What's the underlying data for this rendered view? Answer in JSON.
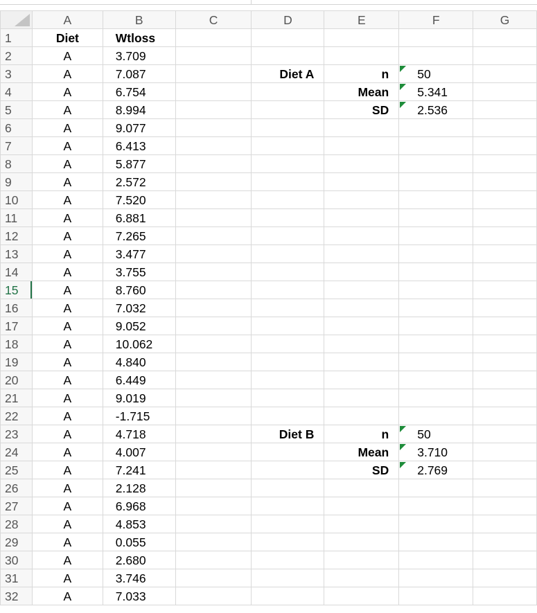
{
  "columns": [
    "A",
    "B",
    "C",
    "D",
    "E",
    "F",
    "G"
  ],
  "active_row": 15,
  "rows": [
    {
      "num": "1",
      "a": "Diet",
      "b": "Wtloss"
    },
    {
      "num": "2",
      "a": "A",
      "b": "3.709"
    },
    {
      "num": "3",
      "a": "A",
      "b": "7.087",
      "d": "Diet A",
      "e": "n",
      "f": "50"
    },
    {
      "num": "4",
      "a": "A",
      "b": "6.754",
      "e": "Mean",
      "f": "5.341"
    },
    {
      "num": "5",
      "a": "A",
      "b": "8.994",
      "e": "SD",
      "f": "2.536"
    },
    {
      "num": "6",
      "a": "A",
      "b": "9.077"
    },
    {
      "num": "7",
      "a": "A",
      "b": "6.413"
    },
    {
      "num": "8",
      "a": "A",
      "b": "5.877"
    },
    {
      "num": "9",
      "a": "A",
      "b": "2.572"
    },
    {
      "num": "10",
      "a": "A",
      "b": "7.520"
    },
    {
      "num": "11",
      "a": "A",
      "b": "6.881"
    },
    {
      "num": "12",
      "a": "A",
      "b": "7.265"
    },
    {
      "num": "13",
      "a": "A",
      "b": "3.477"
    },
    {
      "num": "14",
      "a": "A",
      "b": "3.755"
    },
    {
      "num": "15",
      "a": "A",
      "b": "8.760"
    },
    {
      "num": "16",
      "a": "A",
      "b": "7.032"
    },
    {
      "num": "17",
      "a": "A",
      "b": "9.052"
    },
    {
      "num": "18",
      "a": "A",
      "b": "10.062"
    },
    {
      "num": "19",
      "a": "A",
      "b": "4.840"
    },
    {
      "num": "20",
      "a": "A",
      "b": "6.449"
    },
    {
      "num": "21",
      "a": "A",
      "b": "9.019"
    },
    {
      "num": "22",
      "a": "A",
      "b": "-1.715"
    },
    {
      "num": "23",
      "a": "A",
      "b": "4.718",
      "d": "Diet B",
      "e": "n",
      "f": "50"
    },
    {
      "num": "24",
      "a": "A",
      "b": "4.007",
      "e": "Mean",
      "f": "3.710"
    },
    {
      "num": "25",
      "a": "A",
      "b": "7.241",
      "e": "SD",
      "f": "2.769"
    },
    {
      "num": "26",
      "a": "A",
      "b": "2.128"
    },
    {
      "num": "27",
      "a": "A",
      "b": "6.968"
    },
    {
      "num": "28",
      "a": "A",
      "b": "4.853"
    },
    {
      "num": "29",
      "a": "A",
      "b": "0.055"
    },
    {
      "num": "30",
      "a": "A",
      "b": "2.680"
    },
    {
      "num": "31",
      "a": "A",
      "b": "3.746"
    },
    {
      "num": "32",
      "a": "A",
      "b": "7.033"
    }
  ],
  "colors": {
    "accent": "#217346",
    "error_marker": "#1e8c3a",
    "gridline": "#d9d9d9",
    "header_bg": "#f7f7f7"
  },
  "icons": {
    "select_all": "select-all-triangle-icon",
    "cell_marker": "error-indicator-icon"
  }
}
